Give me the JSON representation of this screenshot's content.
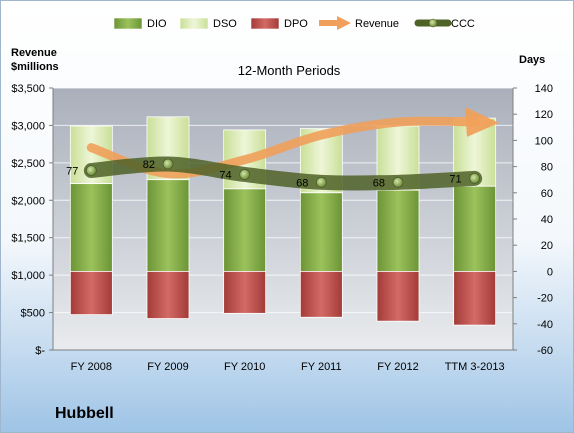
{
  "chart_data": {
    "type": "bar",
    "title": "12-Month Periods",
    "company": "Hubbell",
    "categories": [
      "FY 2008",
      "FY 2009",
      "FY 2010",
      "FY 2011",
      "FY 2012",
      "TTM 3-2013"
    ],
    "left_axis": {
      "label_line1": "Revenue",
      "label_line2": "$millions",
      "ylim": [
        0,
        3500
      ],
      "ticks": [
        0,
        500,
        1000,
        1500,
        2000,
        2500,
        3000,
        3500
      ],
      "tick_labels": [
        "$-",
        "$500",
        "$1,000",
        "$1,500",
        "$2,000",
        "$2,500",
        "$3,000",
        "$3,500"
      ]
    },
    "right_axis": {
      "label": "Days",
      "ylim": [
        -60,
        140
      ],
      "ticks": [
        -60,
        -40,
        -20,
        0,
        20,
        40,
        60,
        80,
        100,
        120,
        140
      ],
      "tick_labels": [
        "-60",
        "-40",
        "-20",
        "0",
        "20",
        "40",
        "60",
        "80",
        "100",
        "120",
        "140"
      ]
    },
    "legend": {
      "position": "top",
      "items": [
        {
          "name": "DIO",
          "kind": "bar"
        },
        {
          "name": "DSO",
          "kind": "bar"
        },
        {
          "name": "DPO",
          "kind": "bar"
        },
        {
          "name": "Revenue",
          "kind": "arrow"
        },
        {
          "name": "CCC",
          "kind": "line"
        }
      ]
    },
    "series": [
      {
        "name": "DIO",
        "axis": "right",
        "values": [
          67,
          70,
          63,
          60,
          62,
          65
        ],
        "color": "#7fa848"
      },
      {
        "name": "DSO",
        "axis": "right",
        "values": [
          44,
          48,
          45,
          49,
          49,
          52
        ],
        "color": "#d9ecb3"
      },
      {
        "name": "DPO",
        "axis": "right",
        "values": [
          -33,
          -36,
          -32,
          -35,
          -38,
          -41
        ],
        "color": "#c0504d"
      },
      {
        "name": "Revenue",
        "axis": "left",
        "values": [
          2704,
          2356,
          2541,
          2872,
          3044,
          3020
        ],
        "color": "#f0a05a"
      },
      {
        "name": "CCC",
        "axis": "right",
        "values": [
          77,
          82,
          74,
          68,
          68,
          71
        ],
        "color": "#4f6228"
      }
    ],
    "ccc_labels": [
      "77",
      "82",
      "74",
      "68",
      "68",
      "71"
    ],
    "grid": true
  }
}
